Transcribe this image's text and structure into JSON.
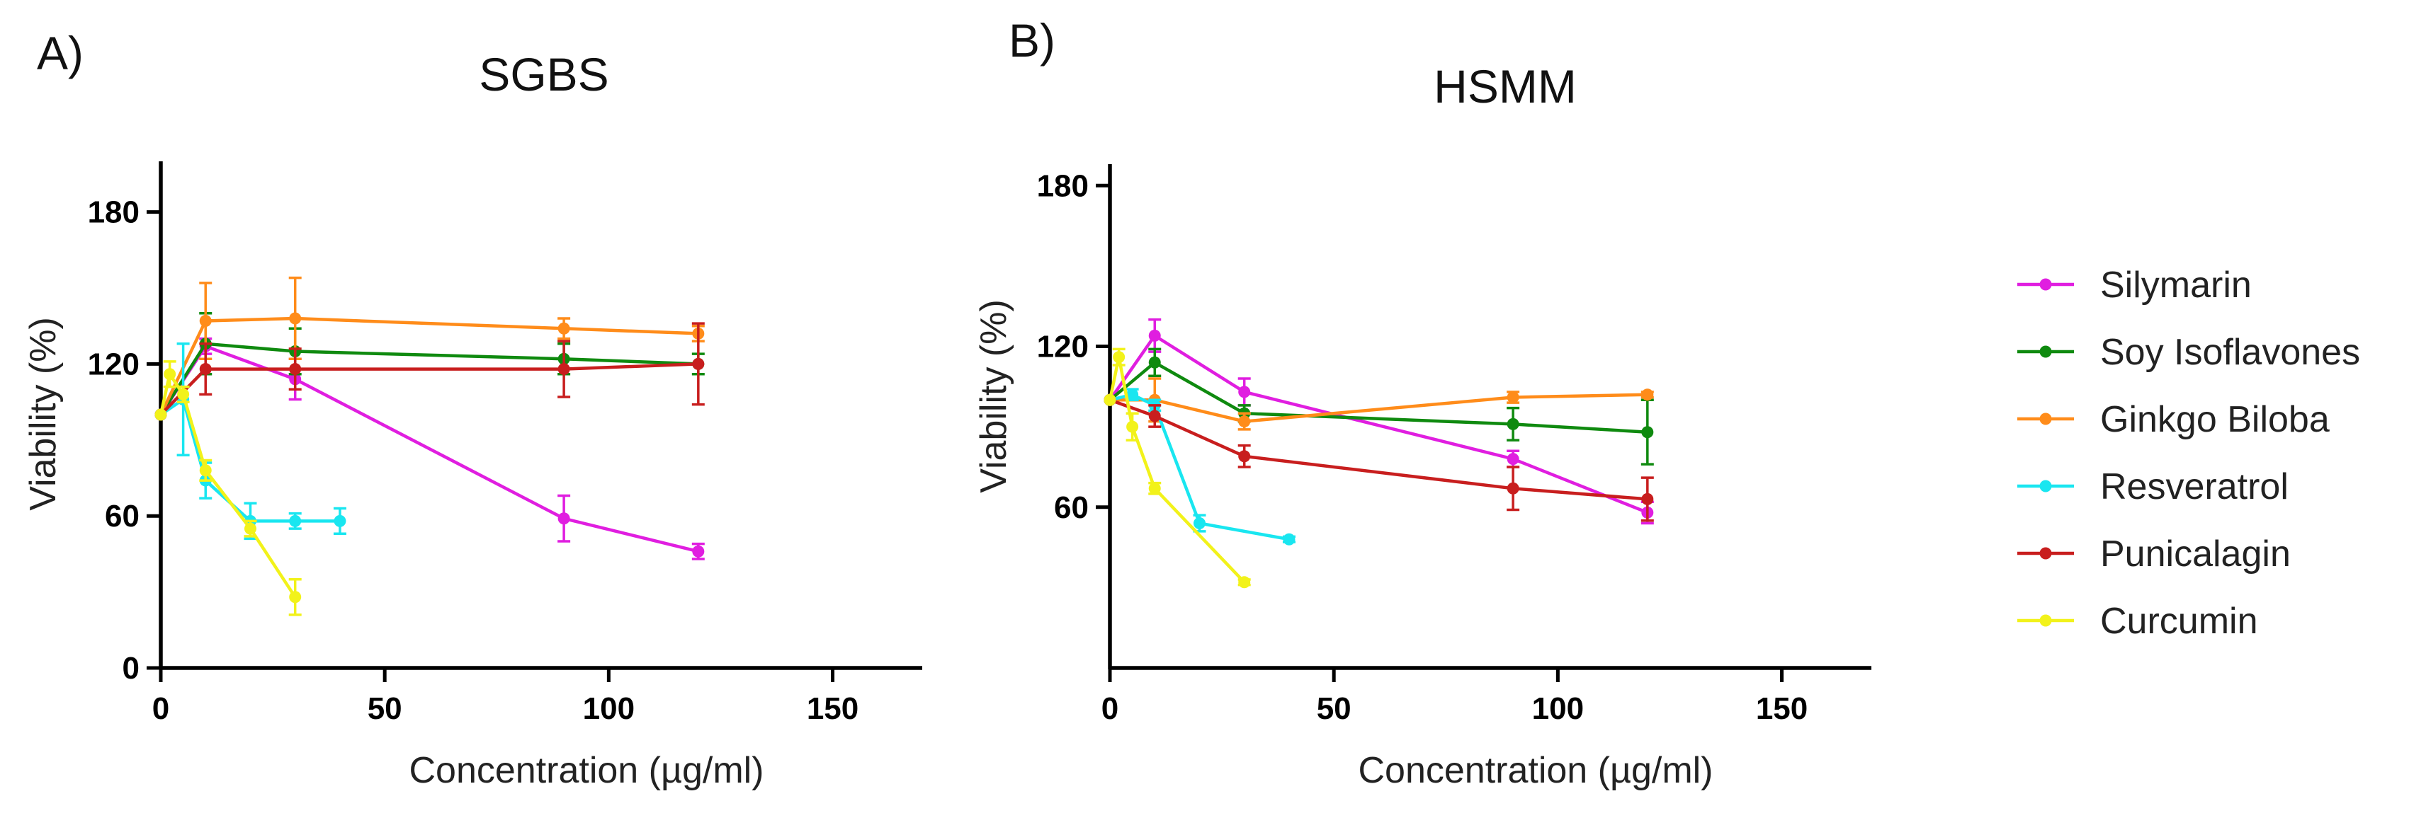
{
  "panels": [
    {
      "letter": "A)",
      "chart_data": {
        "type": "line",
        "title": "SGBS",
        "xlabel": "Concentration (µg/ml)",
        "ylabel": "Viability (%)",
        "xlim": [
          0,
          170
        ],
        "ylim": [
          0,
          200
        ],
        "xticks": [
          0,
          50,
          100,
          150
        ],
        "yticks": [
          0,
          60,
          120,
          180
        ],
        "series": [
          {
            "name": "Silymarin",
            "color": "#e01ee0",
            "x": [
              0,
              10,
              30,
              90,
              120
            ],
            "y": [
              100,
              127,
              114,
              59,
              46
            ],
            "err": [
              0,
              3,
              8,
              9,
              3
            ]
          },
          {
            "name": "Soy Isoflavones",
            "color": "#0f8a0f",
            "x": [
              0,
              10,
              30,
              90,
              120
            ],
            "y": [
              100,
              128,
              125,
              122,
              120
            ],
            "err": [
              0,
              12,
              9,
              6,
              4
            ]
          },
          {
            "name": "Ginkgo Biloba",
            "color": "#ff8c1a",
            "x": [
              0,
              10,
              30,
              90,
              120
            ],
            "y": [
              100,
              137,
              138,
              134,
              132
            ],
            "err": [
              0,
              15,
              16,
              4,
              3
            ]
          },
          {
            "name": "Resveratrol",
            "color": "#19e6f0",
            "x": [
              0,
              5,
              10,
              20,
              30,
              40
            ],
            "y": [
              100,
              106,
              74,
              58,
              58,
              58
            ],
            "err": [
              0,
              22,
              7,
              7,
              3,
              5
            ]
          },
          {
            "name": "Punicalagin",
            "color": "#c81e1e",
            "x": [
              0,
              10,
              30,
              90,
              120
            ],
            "y": [
              100,
              118,
              118,
              118,
              120
            ],
            "err": [
              0,
              10,
              8,
              11,
              16
            ]
          },
          {
            "name": "Curcumin",
            "color": "#f2f21a",
            "x": [
              0,
              2,
              5,
              10,
              20,
              30
            ],
            "y": [
              100,
              116,
              108,
              78,
              55,
              28
            ],
            "err": [
              0,
              5,
              3,
              4,
              3,
              7
            ]
          }
        ]
      }
    },
    {
      "letter": "B)",
      "chart_data": {
        "type": "line",
        "title": "HSMM",
        "xlabel": "Concentration (µg/ml)",
        "ylabel": "Viability (%)",
        "xlim": [
          0,
          170
        ],
        "ylim": [
          0,
          188
        ],
        "xticks": [
          0,
          50,
          100,
          150
        ],
        "yticks": [
          60,
          120,
          180
        ],
        "series": [
          {
            "name": "Silymarin",
            "color": "#e01ee0",
            "x": [
              0,
              10,
              30,
              90,
              120
            ],
            "y": [
              100,
              124,
              103,
              78,
              58
            ],
            "err": [
              0,
              6,
              5,
              3,
              4
            ]
          },
          {
            "name": "Soy Isoflavones",
            "color": "#0f8a0f",
            "x": [
              0,
              10,
              30,
              90,
              120
            ],
            "y": [
              100,
              114,
              95,
              91,
              88
            ],
            "err": [
              0,
              5,
              3,
              6,
              12
            ]
          },
          {
            "name": "Ginkgo Biloba",
            "color": "#ff8c1a",
            "x": [
              0,
              10,
              30,
              90,
              120
            ],
            "y": [
              100,
              100,
              92,
              101,
              102
            ],
            "err": [
              0,
              8,
              3,
              2,
              1
            ]
          },
          {
            "name": "Resveratrol",
            "color": "#19e6f0",
            "x": [
              0,
              5,
              10,
              20,
              40
            ],
            "y": [
              100,
              102,
              98,
              54,
              48
            ],
            "err": [
              0,
              2,
              2,
              3,
              1
            ]
          },
          {
            "name": "Punicalagin",
            "color": "#c81e1e",
            "x": [
              0,
              10,
              30,
              90,
              120
            ],
            "y": [
              100,
              94,
              79,
              67,
              63
            ],
            "err": [
              0,
              4,
              4,
              8,
              8
            ]
          },
          {
            "name": "Curcumin",
            "color": "#f2f21a",
            "x": [
              0,
              2,
              5,
              10,
              30
            ],
            "y": [
              100,
              116,
              90,
              67,
              32
            ],
            "err": [
              0,
              3,
              5,
              2,
              1
            ]
          }
        ]
      }
    }
  ],
  "legend": {
    "position": "right",
    "items": [
      {
        "label": "Silymarin",
        "color": "#e01ee0"
      },
      {
        "label": "Soy Isoflavones",
        "color": "#0f8a0f"
      },
      {
        "label": "Ginkgo Biloba",
        "color": "#ff8c1a"
      },
      {
        "label": "Resveratrol",
        "color": "#19e6f0"
      },
      {
        "label": "Punicalagin",
        "color": "#c81e1e"
      },
      {
        "label": "Curcumin",
        "color": "#f2f21a"
      }
    ]
  }
}
